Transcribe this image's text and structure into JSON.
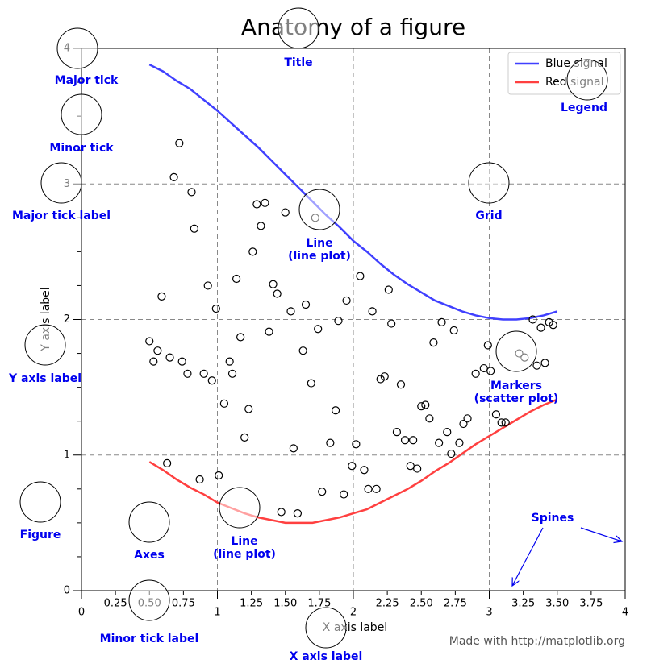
{
  "chart_data": {
    "type": "line",
    "title": "Anatomy of a figure",
    "xlabel": "X axis label",
    "ylabel": "Y axis label",
    "footer": "Made with http://matplotlib.org",
    "xlim": [
      0,
      4
    ],
    "ylim": [
      0,
      4
    ],
    "xticks": [
      0,
      1,
      2,
      3,
      4
    ],
    "yticks": [
      0,
      1,
      2,
      3,
      4
    ],
    "xminorticks": [
      0.25,
      {
        "value": 0.5,
        "label": "0.50"
      },
      0.75,
      1.25,
      {
        "value": 1.5,
        "label": "1.50"
      },
      1.75,
      2.25,
      {
        "value": 2.5,
        "label": "2.50"
      },
      2.75,
      3.25,
      {
        "value": 3.5,
        "label": "3.50"
      },
      3.75
    ],
    "yminorticks": [
      0.25,
      0.5,
      0.75,
      1.25,
      1.5,
      1.75,
      2.25,
      2.5,
      2.75,
      3.25,
      3.5,
      3.75
    ],
    "grid": true,
    "legend": "upper right",
    "x": [
      0.5,
      0.6,
      0.7,
      0.8,
      0.9,
      1.0,
      1.1,
      1.2,
      1.3,
      1.4,
      1.5,
      1.6,
      1.7,
      1.8,
      1.9,
      2.0,
      2.1,
      2.2,
      2.3,
      2.4,
      2.5,
      2.6,
      2.7,
      2.8,
      2.9,
      3.0,
      3.1,
      3.2,
      3.3,
      3.4,
      3.5
    ],
    "series": [
      {
        "name": "Blue signal",
        "color": "#4040ff",
        "values": [
          3.88,
          3.83,
          3.76,
          3.7,
          3.62,
          3.54,
          3.45,
          3.36,
          3.27,
          3.17,
          3.07,
          2.97,
          2.87,
          2.77,
          2.68,
          2.58,
          2.5,
          2.41,
          2.33,
          2.26,
          2.2,
          2.14,
          2.1,
          2.06,
          2.03,
          2.01,
          2.0,
          2.0,
          2.01,
          2.03,
          2.06
        ]
      },
      {
        "name": "Red signal",
        "color": "#ff4040",
        "values": [
          0.95,
          0.89,
          0.82,
          0.76,
          0.71,
          0.65,
          0.61,
          0.57,
          0.54,
          0.52,
          0.5,
          0.5,
          0.5,
          0.52,
          0.54,
          0.57,
          0.6,
          0.65,
          0.7,
          0.75,
          0.81,
          0.88,
          0.94,
          1.01,
          1.08,
          1.14,
          1.2,
          1.26,
          1.32,
          1.37,
          1.41
        ]
      }
    ],
    "markers": {
      "color": "#000000",
      "x": [
        0.72,
        0.68,
        0.81,
        0.83,
        0.59,
        0.93,
        0.99,
        1.14,
        1.29,
        1.35,
        1.5,
        1.72,
        1.32,
        1.26,
        1.41,
        1.44,
        1.65,
        1.54,
        2.05,
        1.95,
        2.14,
        2.26,
        2.28,
        1.89,
        1.74,
        1.38,
        1.17,
        0.5,
        0.56,
        0.53,
        0.65,
        0.74,
        0.78,
        0.9,
        0.96,
        1.09,
        1.11,
        1.63,
        1.69,
        1.05,
        1.23,
        1.2,
        1.56,
        1.87,
        1.83,
        2.02,
        1.99,
        2.08,
        2.11,
        2.17,
        1.93,
        1.77,
        1.47,
        1.59,
        2.2,
        2.23,
        2.35,
        2.32,
        2.38,
        2.44,
        2.42,
        2.47,
        2.5,
        2.53,
        2.56,
        2.59,
        2.65,
        2.74,
        2.63,
        2.69,
        2.72,
        2.78,
        2.81,
        2.84,
        2.9,
        2.96,
        3.01,
        2.99,
        3.05,
        3.09,
        3.12,
        3.22,
        3.26,
        3.32,
        3.38,
        3.44,
        3.47,
        3.41,
        3.35,
        0.63,
        0.87,
        1.01
      ],
      "y": [
        3.3,
        3.05,
        2.94,
        2.67,
        2.17,
        2.25,
        2.08,
        2.3,
        2.85,
        2.86,
        2.79,
        2.75,
        2.69,
        2.5,
        2.26,
        2.19,
        2.11,
        2.06,
        2.32,
        2.14,
        2.06,
        2.22,
        1.97,
        1.99,
        1.93,
        1.91,
        1.87,
        1.84,
        1.77,
        1.69,
        1.72,
        1.69,
        1.6,
        1.6,
        1.55,
        1.69,
        1.6,
        1.77,
        1.53,
        1.38,
        1.34,
        1.13,
        1.05,
        1.33,
        1.09,
        1.08,
        0.92,
        0.89,
        0.75,
        0.75,
        0.71,
        0.73,
        0.58,
        0.57,
        1.56,
        1.58,
        1.52,
        1.17,
        1.11,
        1.11,
        0.92,
        0.9,
        1.36,
        1.37,
        1.27,
        1.83,
        1.98,
        1.92,
        1.09,
        1.17,
        1.01,
        1.09,
        1.23,
        1.27,
        1.6,
        1.64,
        1.62,
        1.81,
        1.3,
        1.24,
        1.24,
        1.75,
        1.72,
        2.0,
        1.94,
        1.98,
        1.96,
        1.68,
        1.66,
        0.94,
        0.82,
        0.85
      ]
    },
    "annotations": [
      "Major tick",
      "Minor tick",
      "Major tick label",
      "Y axis label",
      "Figure",
      "Axes",
      "Title",
      "Line\n(line plot)",
      "Line\n(line plot)",
      "Grid",
      "Legend",
      "Markers\n(scatter plot)",
      "Spines",
      "Minor tick label",
      "X axis label"
    ]
  }
}
